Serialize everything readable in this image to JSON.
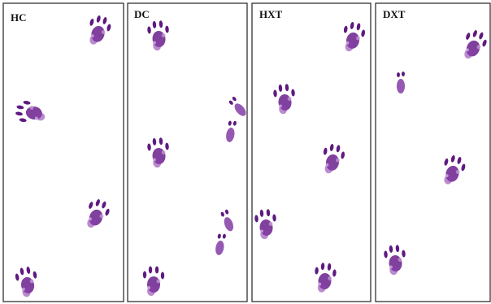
{
  "panels": [
    {
      "label": "HC"
    },
    {
      "label": "DC"
    },
    {
      "label": "HXT"
    },
    {
      "label": "DXT"
    }
  ]
}
